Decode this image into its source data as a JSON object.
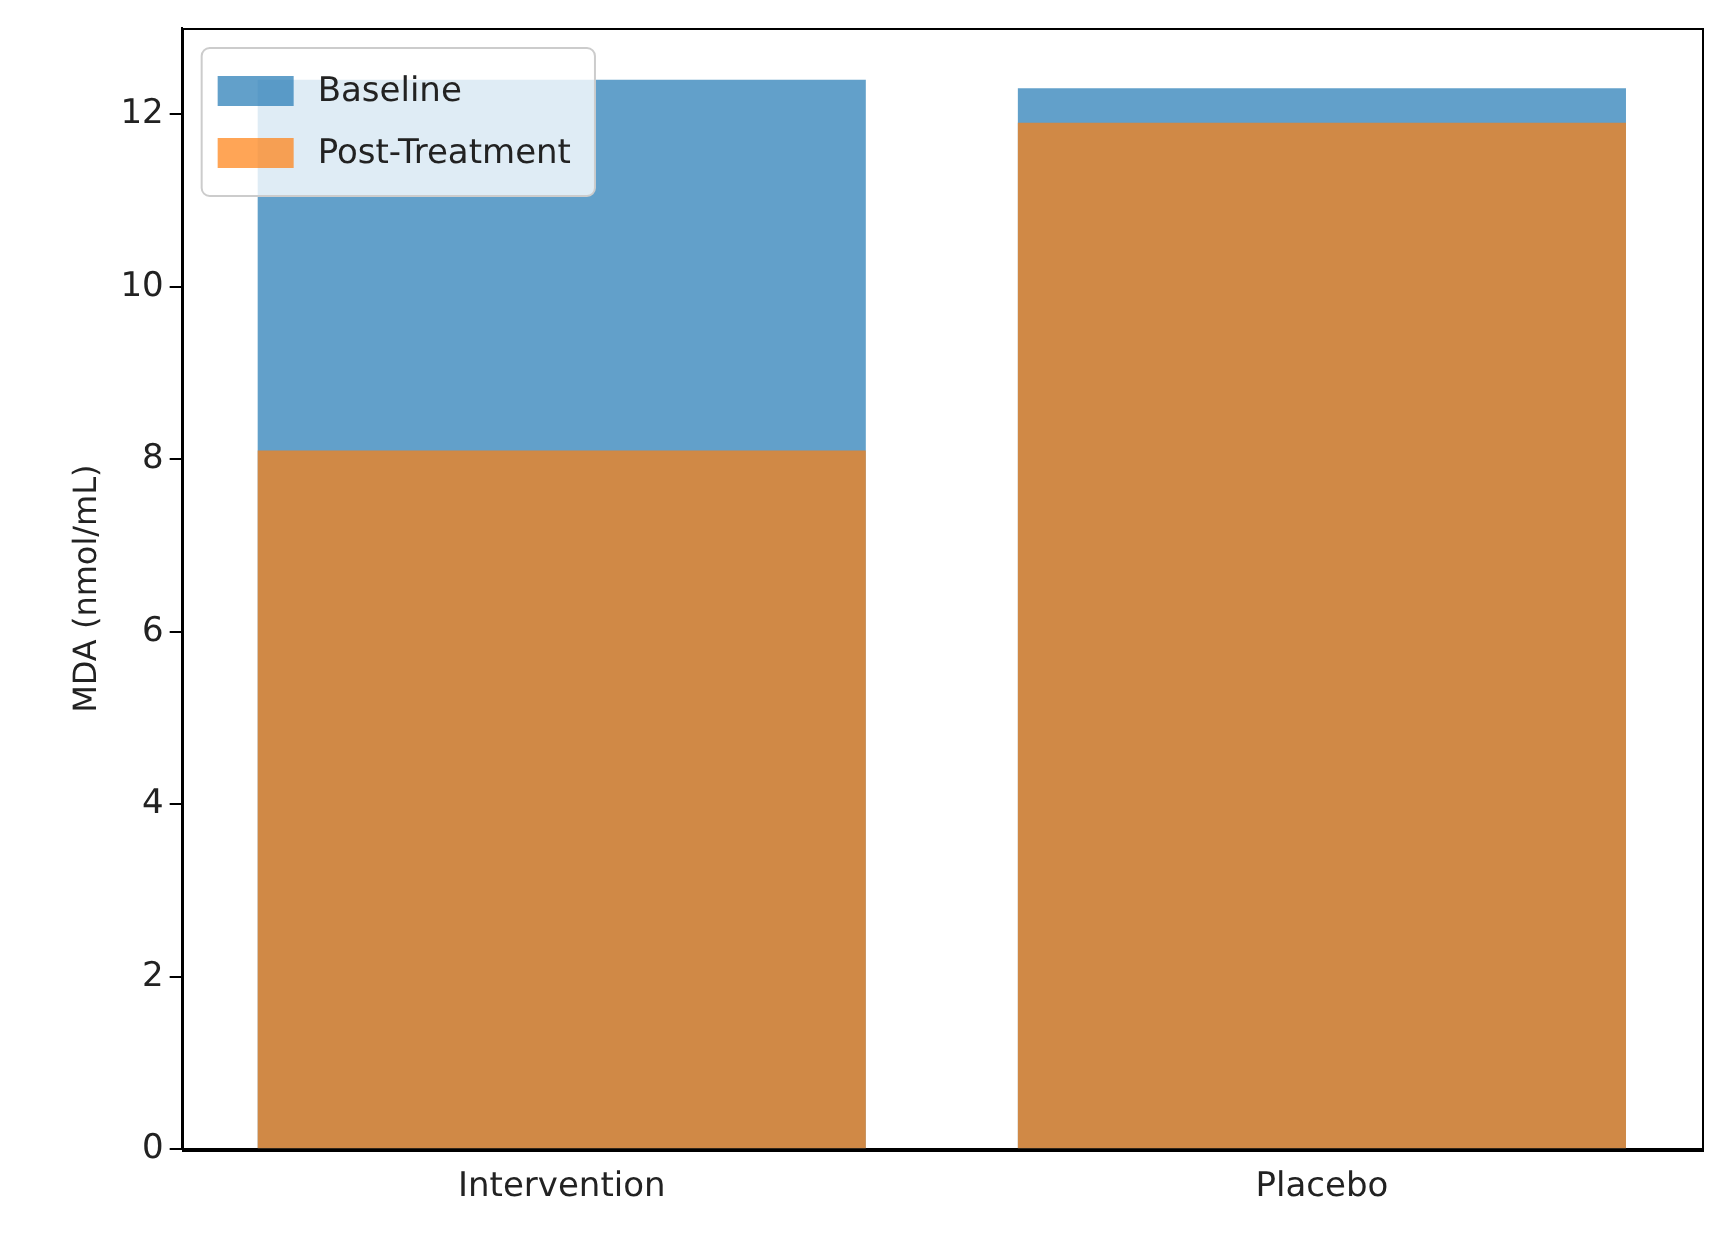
{
  "chart_data": {
    "type": "bar",
    "ylabel": "MDA (nmol/mL)",
    "categories": [
      "Intervention",
      "Placebo"
    ],
    "series": [
      {
        "name": "Baseline",
        "color": "#1f77b4",
        "values": [
          12.4,
          12.3
        ]
      },
      {
        "name": "Post-Treatment",
        "color": "#ff7f0e",
        "values": [
          8.1,
          11.9
        ]
      }
    ],
    "ylim": [
      0,
      13
    ],
    "yticks": [
      0,
      2,
      4,
      6,
      8,
      10,
      12
    ],
    "grid": false,
    "legend": "top left"
  }
}
